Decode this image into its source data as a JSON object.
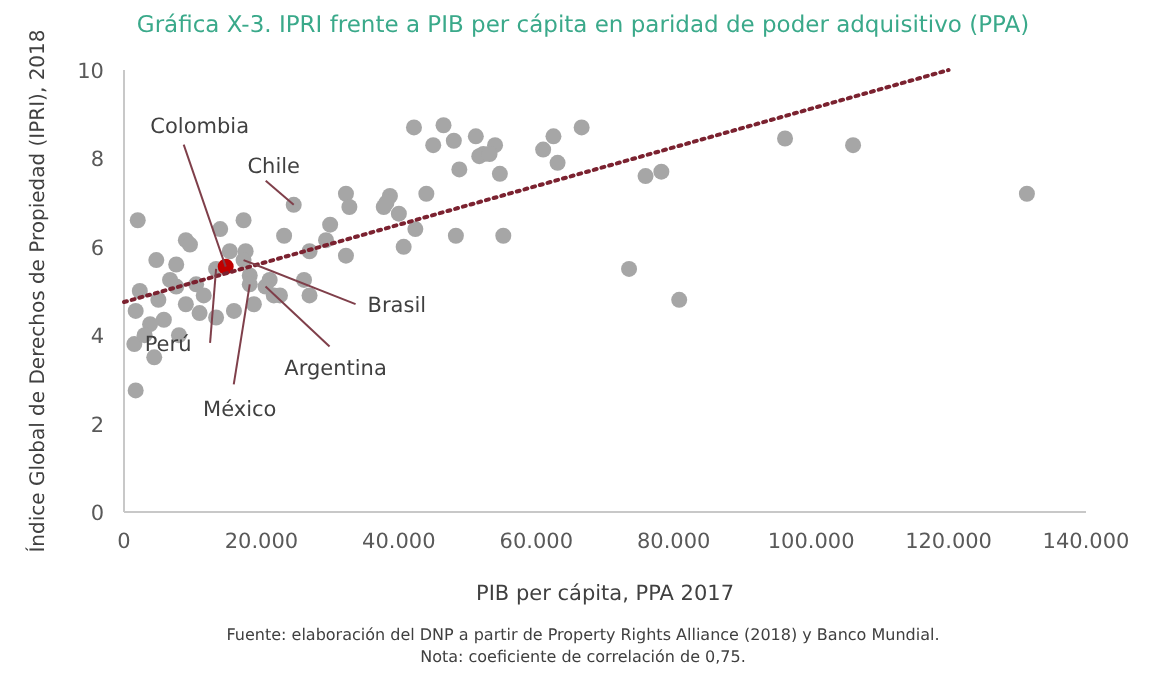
{
  "chart_data": {
    "type": "scatter",
    "title": "Gráfica X-3. IPRI frente a PIB per cápita en paridad de poder adquisitivo (PPA)",
    "xlabel": "PIB per cápita, PPA 2017",
    "ylabel": "Índice Global de Derechos de Propiedad (IPRI), 2018",
    "xlim": [
      0,
      140000
    ],
    "ylim": [
      0,
      10
    ],
    "xticks": [
      0,
      {
        "value": 20000,
        "label": "20.000"
      },
      {
        "value": 40000,
        "label": "40.000"
      },
      {
        "value": 60000,
        "label": "60.000"
      },
      {
        "value": 80000,
        "label": "80.000"
      },
      {
        "value": 100000,
        "label": "100.000"
      },
      {
        "value": 120000,
        "label": "120.000"
      },
      {
        "value": 140000,
        "label": "140.000"
      }
    ],
    "yticks": [
      0,
      2,
      4,
      6,
      8,
      10
    ],
    "grid": false,
    "series": [
      {
        "color": "#a6a6a6",
        "marker": "circle",
        "x": [
          2000,
          1700,
          14000,
          9000,
          24700,
          17400,
          23300,
          27000,
          30000,
          32300,
          32800,
          38700,
          37800,
          40000,
          42400,
          44000,
          48300,
          40700,
          32300,
          29400,
          26200,
          27000,
          21200,
          21800,
          18300,
          18900,
          16000,
          13400,
          10500,
          7600,
          9000,
          5800,
          3800,
          1700,
          1500,
          4400,
          2300,
          4700,
          7600,
          9600,
          6700,
          11600,
          15400,
          17700,
          17400,
          20600,
          18300,
          13400,
          22700,
          42200,
          46500,
          45000,
          48000,
          51200,
          52300,
          54000,
          48800,
          54700,
          55200,
          51700,
          53200,
          61000,
          62500,
          66600,
          63100,
          38200,
          75900,
          78200,
          73500,
          80800,
          96200,
          106100,
          131400,
          3000,
          5000,
          11000,
          8000
        ],
        "values": [
          6.6,
          2.75,
          6.4,
          6.15,
          6.95,
          6.6,
          6.25,
          5.9,
          6.5,
          7.2,
          6.9,
          7.15,
          6.9,
          6.75,
          6.4,
          7.2,
          6.25,
          6.0,
          5.8,
          6.15,
          5.25,
          4.9,
          5.25,
          4.9,
          5.35,
          4.7,
          4.55,
          4.4,
          5.15,
          5.1,
          4.7,
          4.35,
          4.25,
          4.55,
          3.8,
          3.5,
          5.0,
          5.7,
          5.6,
          6.05,
          5.25,
          4.9,
          5.9,
          5.9,
          5.7,
          5.1,
          5.15,
          5.5,
          4.9,
          8.7,
          8.75,
          8.3,
          8.4,
          8.5,
          8.1,
          8.3,
          7.75,
          7.65,
          6.25,
          8.05,
          8.1,
          8.2,
          8.5,
          8.7,
          7.9,
          7.0,
          7.6,
          7.7,
          5.5,
          4.8,
          8.45,
          8.3,
          7.2,
          4.0,
          4.8,
          4.5,
          4.0
        ]
      },
      {
        "color": "#c00000",
        "marker": "circle",
        "x": [
          14800
        ],
        "values": [
          5.55
        ]
      },
      {
        "type": "line",
        "color": "#7b2230",
        "line_style": "dotted",
        "marker": "none",
        "x": [
          0,
          120000
        ],
        "values": [
          4.75,
          10
        ]
      }
    ],
    "annotations": [
      {
        "text": "Colombia",
        "x": 14800,
        "y": 5.55
      },
      {
        "text": "Chile",
        "x": 24700,
        "y": 6.95
      },
      {
        "text": "Brasil",
        "x": 17400,
        "y": 5.7
      },
      {
        "text": "Argentina",
        "x": 20600,
        "y": 5.1
      },
      {
        "text": "Perú",
        "x": 13400,
        "y": 5.5
      },
      {
        "text": "México",
        "x": 18300,
        "y": 5.15
      },
      "Fuente: elaboración del DNP a partir de Property Rights Alliance (2018) y Banco Mundial.",
      "Nota: coeficiente de correlación de 0,75."
    ]
  }
}
